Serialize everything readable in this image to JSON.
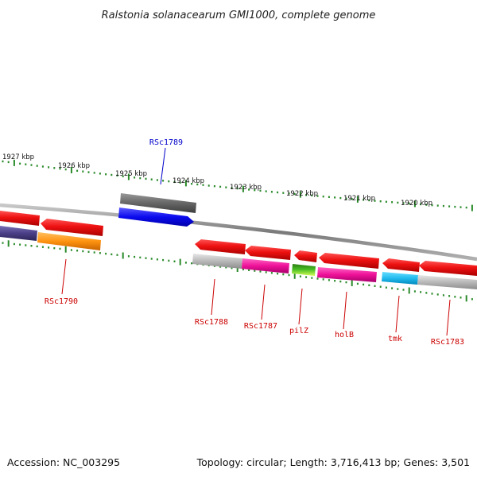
{
  "title": "Ralstonia solanacearum GMI1000, complete genome",
  "footer": {
    "accession": "Accession: NC_003295",
    "summary": "Topology: circular; Length: 3,716,413 bp; Genes: 3,501"
  },
  "scale_ticks": [
    {
      "label": "1927 kbp"
    },
    {
      "label": "1926 kbp"
    },
    {
      "label": "1925 kbp"
    },
    {
      "label": "1924 kbp"
    },
    {
      "label": "1923 kbp"
    },
    {
      "label": "1922 kbp"
    },
    {
      "label": "1921 kbp"
    },
    {
      "label": "1920 kbp"
    }
  ],
  "genes": [
    {
      "label": "RSc1789",
      "color": "#0000cc"
    },
    {
      "label": "RSc1790",
      "color": "#cc0000"
    },
    {
      "label": "RSc1788",
      "color": "#cc0000"
    },
    {
      "label": "RSc1787",
      "color": "#cc0000"
    },
    {
      "label": "pilZ",
      "color": "#cc0000"
    },
    {
      "label": "holB",
      "color": "#cc0000"
    },
    {
      "label": "tmk",
      "color": "#cc0000"
    },
    {
      "label": "RSc1783",
      "color": "#cc0000"
    }
  ],
  "colors": {
    "backbone": "#8a8a8a",
    "scale_tick": "#2a8a2a",
    "feature_red": "#ee1111",
    "feature_gray": "#b4b4b4",
    "feature_dark_gray": "#666666",
    "feature_blue": "#0a0aee",
    "feature_navy": "#4a3f86",
    "feature_orange": "#ff9311",
    "feature_magenta": "#ee1199",
    "feature_green": "#44bb22",
    "feature_cyan": "#22bbee"
  }
}
